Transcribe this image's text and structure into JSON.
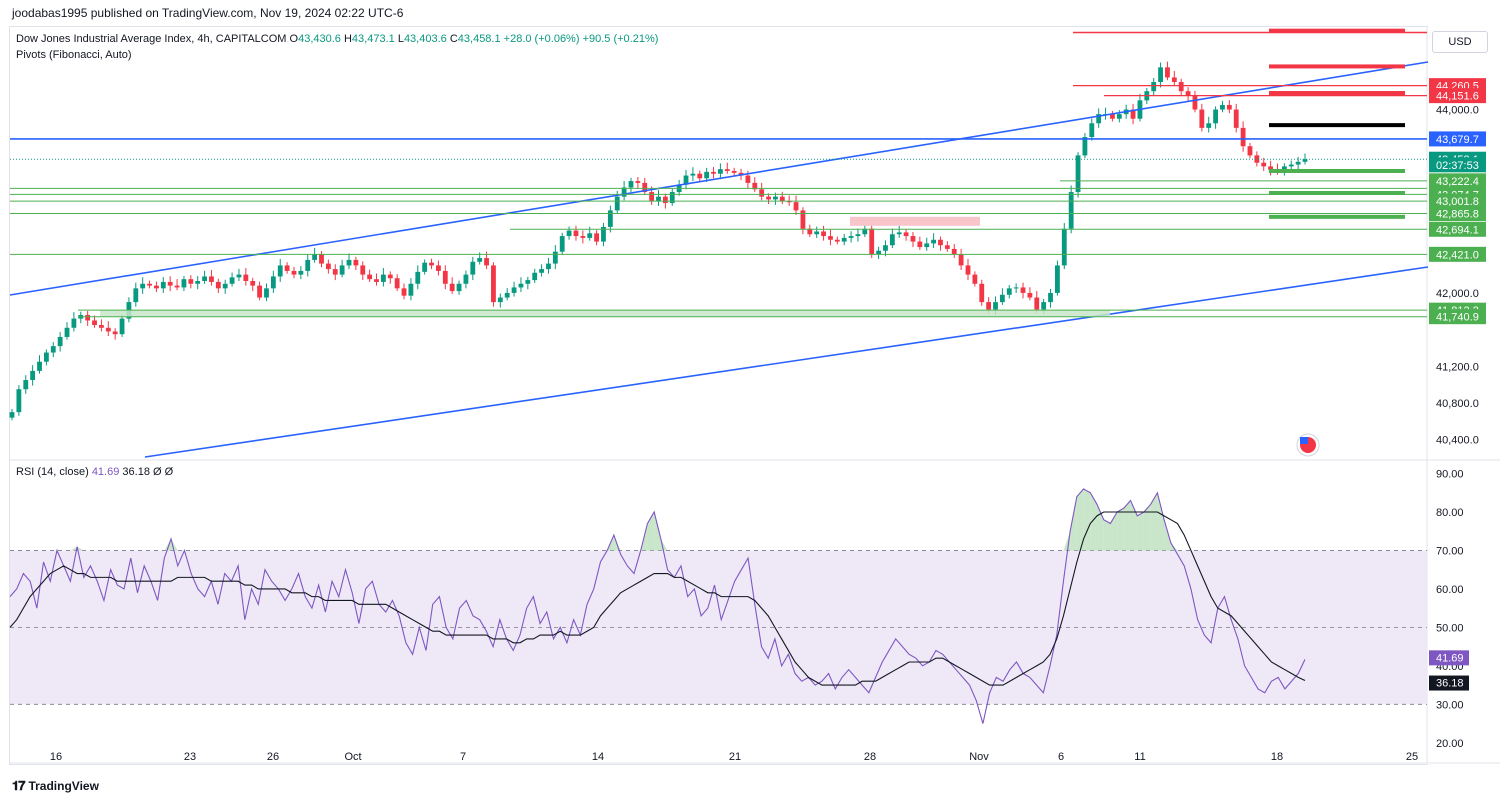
{
  "header": {
    "published": "joodabas1995 published on TradingView.com, Nov 19, 2024 02:22 UTC-6"
  },
  "legend": {
    "symbol": "Dow Jones Industrial Average Index, 4h, CAPITALCOM",
    "open_label": "O",
    "open": "43,430.6",
    "high_label": "H",
    "high": "43,473.1",
    "low_label": "L",
    "low": "43,403.6",
    "close_label": "C",
    "close": "43,458.1",
    "change": "+28.0 (+0.06%)",
    "change2": "+90.5 (+0.21%)",
    "indicator": "Pivots (Fibonacci, Auto)"
  },
  "rsi_legend": {
    "name": "RSI (14, close)",
    "rsi": "41.69",
    "ma": "36.18",
    "x1": "Ø",
    "x2": "Ø"
  },
  "currency": "USD",
  "brand": "TradingView",
  "colors": {
    "up": "#089981",
    "down": "#f23645",
    "trend": "#2962ff",
    "support": "#4caf50",
    "resistance": "#f23645",
    "rsi": "#7e57c2",
    "rsi_band": "#ede7f6"
  },
  "chart_data": [
    {
      "type": "candlestick",
      "symbol": "Dow Jones Industrial Average Index",
      "timeframe": "4h",
      "y_range": [
        40200,
        44900
      ],
      "y_ticks": [
        "40,400.0",
        "40,800.0",
        "41,200.0",
        "42,000.0",
        "44,000.0"
      ],
      "x_ticks": [
        "16",
        "23",
        "26",
        "Oct",
        "7",
        "14",
        "21",
        "28",
        "Nov",
        "6",
        "11",
        "18",
        "25"
      ],
      "price_levels": [
        {
          "label": "44,260.5",
          "value": 44260.5,
          "color": "#f23645"
        },
        {
          "label": "44,151.6",
          "value": 44151.6,
          "color": "#f23645"
        },
        {
          "label": "43,679.7",
          "value": 43679.7,
          "color": "#2962ff"
        },
        {
          "label": "43,458.1",
          "value": 43458.1,
          "color": "#089981"
        },
        {
          "label": "02:37:53",
          "value": 43397.0,
          "color": "#089981"
        },
        {
          "label": "43,222.4",
          "value": 43222.4,
          "color": "#4caf50"
        },
        {
          "label": "43,074.7",
          "value": 43074.7,
          "color": "#4caf50"
        },
        {
          "label": "43,001.8",
          "value": 43001.8,
          "color": "#4caf50"
        },
        {
          "label": "42,865.8",
          "value": 42865.8,
          "color": "#4caf50"
        },
        {
          "label": "42,694.1",
          "value": 42694.1,
          "color": "#4caf50"
        },
        {
          "label": "42,421.0",
          "value": 42421.0,
          "color": "#4caf50"
        },
        {
          "label": "41,812.2",
          "value": 41812.2,
          "color": "#4caf50"
        },
        {
          "label": "41,740.9",
          "value": 41740.9,
          "color": "#4caf50"
        }
      ],
      "series": [
        {
          "close": [
            40700,
            40950,
            41050,
            41150,
            41250,
            41350,
            41420,
            41520,
            41620,
            41720,
            41760,
            41700,
            41650,
            41620,
            41580,
            41550,
            41720,
            41900,
            42050,
            42100,
            42080,
            42050,
            42120,
            42080,
            42060,
            42150,
            42100,
            42130,
            42180,
            42120,
            42050,
            42100,
            42170,
            42200,
            42130,
            42080,
            41950,
            42050,
            42180,
            42300,
            42240,
            42200,
            42240,
            42360,
            42420,
            42320,
            42260,
            42200,
            42300,
            42360,
            42300,
            42200,
            42150,
            42120,
            42200,
            42160,
            42050,
            41970,
            42100,
            42230,
            42330,
            42300,
            42240,
            42100,
            42020,
            42100,
            42200,
            42340,
            42380,
            42300,
            41900,
            41950,
            42000,
            42060,
            42100,
            42140,
            42220,
            42260,
            42320,
            42450,
            42620,
            42680,
            42620,
            42600,
            42650,
            42560,
            42720,
            42900,
            43050,
            43150,
            43220,
            43200,
            43100,
            43000,
            43050,
            42980,
            43100,
            43180,
            43280,
            43300,
            43250,
            43320,
            43300,
            43350,
            43330,
            43310,
            43280,
            43200,
            43130,
            43050,
            43020,
            43050,
            43000,
            42990,
            42900,
            42700,
            42640,
            42670,
            42620,
            42580,
            42560,
            42600,
            42620,
            42640,
            42700,
            42420,
            42460,
            42520,
            42640,
            42660,
            42620,
            42560,
            42500,
            42540,
            42580,
            42520,
            42480,
            42420,
            42300,
            42200,
            42100,
            41900,
            41820,
            41900,
            41980,
            42050,
            42060,
            42000,
            41950,
            41820,
            41900,
            42000,
            42300,
            42700,
            43100,
            43500,
            43700,
            43850,
            43950,
            43950,
            43900,
            43950,
            44000,
            43900,
            44100,
            44200,
            44300,
            44460,
            44350,
            44300,
            44200,
            44150,
            44000,
            43800,
            43850,
            44000,
            44050,
            44000,
            43800,
            43600,
            43500,
            43420,
            43380,
            43340,
            43320,
            43380,
            43400,
            43430,
            43458
          ]
        }
      ]
    },
    {
      "type": "line",
      "name": "RSI (14, close)",
      "y_range": [
        15,
        93
      ],
      "y_ticks": [
        "20.00",
        "30.00",
        "40.00",
        "50.00",
        "60.00",
        "70.00",
        "80.00",
        "90.00"
      ],
      "bands": {
        "upper": 70,
        "middle": 50,
        "lower": 30
      },
      "current": {
        "rsi": "41.69",
        "ma": "36.18"
      },
      "series": [
        {
          "values": [
            58,
            60,
            64,
            62,
            55,
            67,
            62,
            70,
            66,
            62,
            71,
            63,
            66,
            62,
            57,
            65,
            61,
            60,
            68,
            59,
            66,
            62,
            57,
            68,
            73,
            66,
            70,
            64,
            60,
            58,
            62,
            56,
            64,
            62,
            66,
            52,
            60,
            56,
            65,
            62,
            60,
            57,
            60,
            64,
            58,
            55,
            61,
            54,
            62,
            58,
            65,
            59,
            51,
            60,
            62,
            56,
            54,
            57,
            53,
            46,
            43,
            50,
            44,
            56,
            58,
            50,
            47,
            55,
            57,
            53,
            52,
            49,
            45,
            52,
            47,
            44,
            48,
            55,
            58,
            51,
            54,
            47,
            50,
            46,
            52,
            48,
            56,
            60,
            67,
            70,
            74,
            69,
            66,
            64,
            70,
            77,
            80,
            73,
            65,
            63,
            66,
            58,
            60,
            53,
            55,
            61,
            52,
            57,
            62,
            65,
            68,
            56,
            45,
            42,
            47,
            40,
            43,
            38,
            36,
            37,
            35,
            36,
            38,
            34,
            37,
            39,
            37,
            35,
            33,
            37,
            41,
            44,
            47,
            45,
            43,
            42,
            40,
            41,
            44,
            43,
            41,
            39,
            37,
            35,
            31,
            25,
            33,
            37,
            36,
            39,
            41,
            38,
            37,
            35,
            33,
            40,
            48,
            62,
            75,
            84,
            86,
            85,
            82,
            78,
            77,
            80,
            81,
            83,
            79,
            80,
            82,
            85,
            78,
            72,
            69,
            66,
            60,
            52,
            48,
            46,
            55,
            58,
            52,
            47,
            40,
            37,
            34,
            33,
            36,
            37,
            34,
            36,
            38,
            41.69
          ]
        },
        {
          "values": [
            50,
            52,
            55,
            58,
            60,
            62,
            64,
            65,
            66,
            65,
            64,
            64,
            63,
            63,
            63,
            63,
            62,
            62,
            62,
            62,
            62,
            62,
            62,
            62,
            62,
            63,
            63,
            63,
            63,
            63,
            62,
            62,
            62,
            62,
            62,
            61,
            61,
            60,
            60,
            60,
            60,
            60,
            59,
            59,
            59,
            58,
            58,
            57,
            57,
            57,
            57,
            57,
            56,
            56,
            56,
            56,
            56,
            55,
            54,
            53,
            52,
            51,
            50,
            49,
            49,
            48,
            48,
            48,
            48,
            48,
            48,
            48,
            47,
            47,
            47,
            46,
            46,
            47,
            47,
            48,
            48,
            48,
            49,
            48,
            48,
            48,
            49,
            50,
            53,
            55,
            57,
            59,
            60,
            61,
            62,
            63,
            64,
            64,
            64,
            63,
            63,
            62,
            61,
            60,
            59,
            59,
            58,
            58,
            58,
            58,
            58,
            57,
            55,
            53,
            50,
            47,
            44,
            41,
            39,
            37,
            36,
            35,
            35,
            35,
            35,
            35,
            35,
            36,
            36,
            36,
            37,
            38,
            39,
            40,
            41,
            41,
            41,
            41,
            42,
            42,
            41,
            40,
            39,
            38,
            37,
            36,
            35,
            35,
            35,
            36,
            37,
            38,
            39,
            40,
            41,
            43,
            47,
            53,
            60,
            67,
            73,
            77,
            79,
            80,
            80,
            80,
            80,
            80,
            80,
            80,
            80,
            80,
            79,
            78,
            77,
            74,
            70,
            66,
            62,
            58,
            55,
            54,
            53,
            51,
            49,
            47,
            45,
            43,
            41,
            40,
            39,
            38,
            37,
            36.18
          ]
        }
      ]
    }
  ]
}
